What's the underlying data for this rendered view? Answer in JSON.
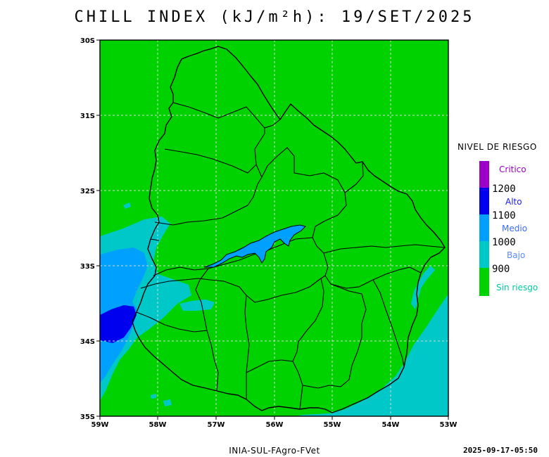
{
  "title": "CHILL INDEX (kJ/m²h): 19/SET/2025",
  "map": {
    "lon_range": [
      -59,
      -53
    ],
    "lat_range": [
      -35,
      -30
    ],
    "gridlines": "dashed",
    "x_ticks": [
      "59W",
      "58W",
      "57W",
      "56W",
      "55W",
      "54W",
      "53W"
    ],
    "y_ticks": [
      "30S",
      "31S",
      "32S",
      "33S",
      "34S",
      "35S"
    ]
  },
  "legend": {
    "title": "NIVEL DE RIESGO",
    "categories": [
      {
        "name": "Critico",
        "color": "#9b00c6",
        "name_color": "#9b00c6"
      },
      {
        "name": "Alto",
        "color": "#0000ee",
        "name_color": "#1a1aff"
      },
      {
        "name": "Medio",
        "color": "#00a0ff",
        "name_color": "#3a6bff"
      },
      {
        "name": "Bajo",
        "color": "#00c8c8",
        "name_color": "#5a8aff"
      },
      {
        "name": "Sin riesgo",
        "color": "#00d200",
        "name_color": "#00c8a0"
      }
    ],
    "thresholds": [
      "1200",
      "1100",
      "1000",
      "900"
    ]
  },
  "footer": {
    "source": "INIA-SUL-FAgro-FVet",
    "timestamp": "2025-09-17-05:50"
  }
}
